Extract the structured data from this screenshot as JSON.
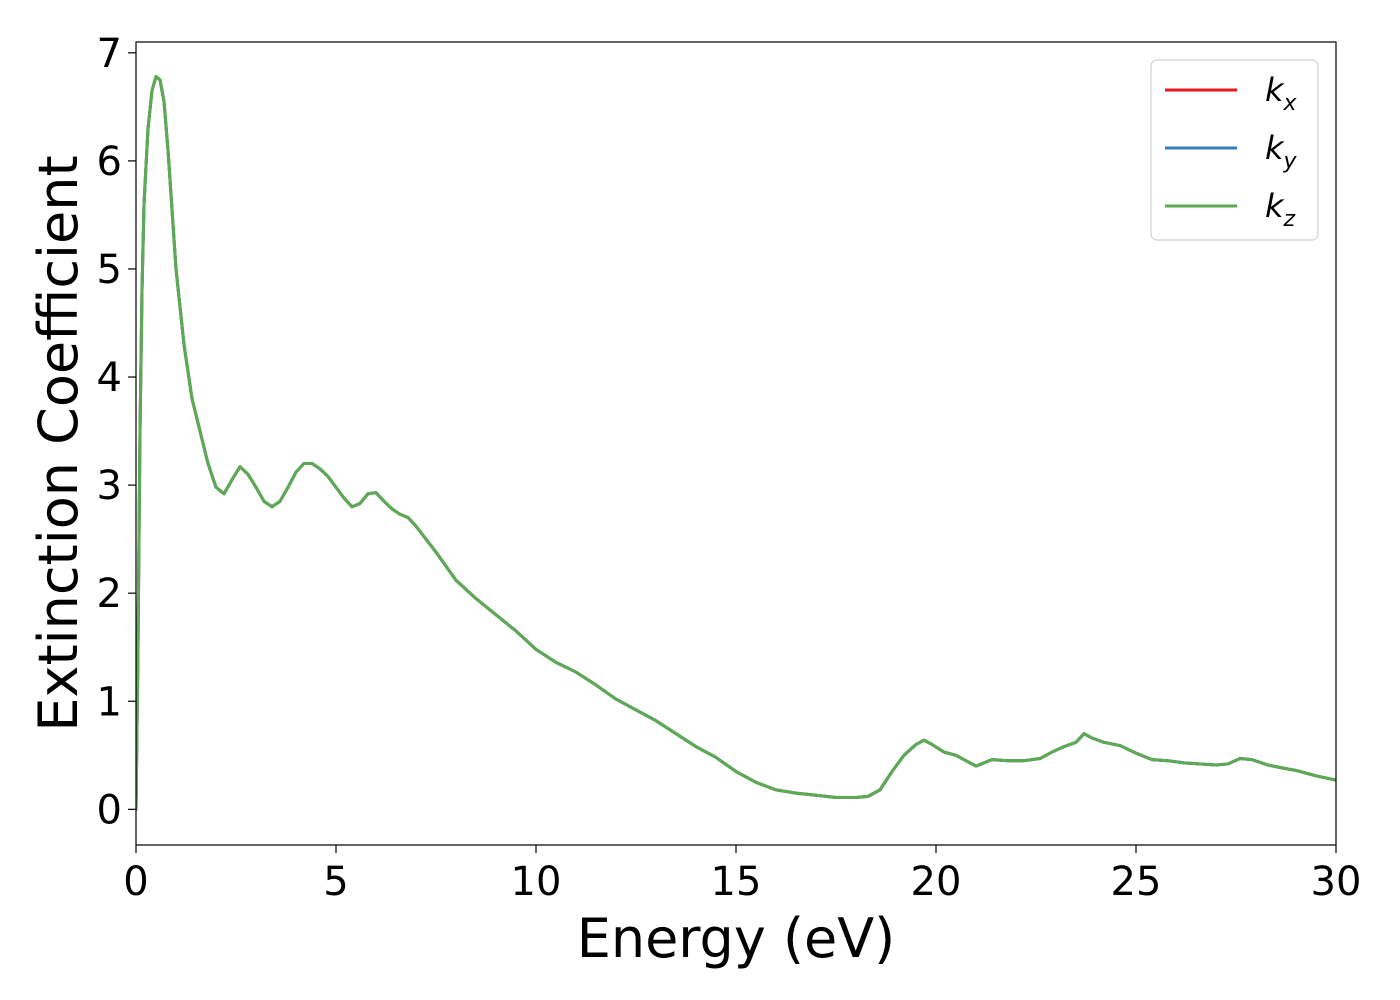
{
  "chart_data": {
    "type": "line",
    "xlabel": "Energy (eV)",
    "ylabel": "Extinction Coefficient",
    "xlim": [
      0,
      30
    ],
    "ylim": [
      -0.33,
      7.1
    ],
    "xticks": [
      "0",
      "5",
      "10",
      "15",
      "20",
      "25",
      "30"
    ],
    "yticks": [
      "0",
      "1",
      "2",
      "3",
      "4",
      "5",
      "6",
      "7"
    ],
    "grid": false,
    "legend_position": "top-right",
    "series": [
      {
        "name": "k",
        "subscript": "x",
        "color": "#e41a1c",
        "x": [
          0,
          0.05,
          0.1,
          0.15,
          0.2,
          0.3,
          0.4,
          0.5,
          0.6,
          0.7,
          0.8,
          0.9,
          1.0,
          1.1,
          1.2,
          1.4,
          1.6,
          1.8,
          2.0,
          2.2,
          2.4,
          2.6,
          2.8,
          3.0,
          3.2,
          3.4,
          3.6,
          3.8,
          4.0,
          4.2,
          4.4,
          4.6,
          4.8,
          5.0,
          5.2,
          5.4,
          5.6,
          5.8,
          6.0,
          6.2,
          6.4,
          6.6,
          6.8,
          7.0,
          7.5,
          8.0,
          8.5,
          9.0,
          9.5,
          10.0,
          10.5,
          11.0,
          11.5,
          12.0,
          12.5,
          13.0,
          13.5,
          14.0,
          14.5,
          15.0,
          15.5,
          16.0,
          16.5,
          17.0,
          17.5,
          18.0,
          18.3,
          18.6,
          18.9,
          19.2,
          19.5,
          19.7,
          19.9,
          20.2,
          20.5,
          20.8,
          21.0,
          21.4,
          21.8,
          22.2,
          22.6,
          22.9,
          23.2,
          23.5,
          23.7,
          23.9,
          24.2,
          24.6,
          25.0,
          25.4,
          25.8,
          26.2,
          26.6,
          27.0,
          27.3,
          27.6,
          27.9,
          28.3,
          28.7,
          29.0,
          29.5,
          30.0
        ],
        "y": [
          0,
          1.5,
          3.5,
          4.8,
          5.6,
          6.3,
          6.65,
          6.78,
          6.75,
          6.55,
          6.1,
          5.55,
          5.0,
          4.65,
          4.3,
          3.8,
          3.5,
          3.2,
          2.98,
          2.92,
          3.05,
          3.17,
          3.1,
          2.98,
          2.85,
          2.8,
          2.85,
          2.98,
          3.12,
          3.2,
          3.2,
          3.15,
          3.08,
          2.98,
          2.88,
          2.8,
          2.83,
          2.92,
          2.93,
          2.85,
          2.78,
          2.73,
          2.7,
          2.62,
          2.38,
          2.12,
          1.95,
          1.8,
          1.65,
          1.48,
          1.36,
          1.27,
          1.15,
          1.02,
          0.92,
          0.82,
          0.7,
          0.58,
          0.48,
          0.35,
          0.25,
          0.18,
          0.15,
          0.13,
          0.11,
          0.11,
          0.12,
          0.18,
          0.35,
          0.5,
          0.6,
          0.64,
          0.6,
          0.53,
          0.5,
          0.44,
          0.4,
          0.46,
          0.45,
          0.45,
          0.47,
          0.53,
          0.58,
          0.62,
          0.7,
          0.66,
          0.62,
          0.59,
          0.52,
          0.46,
          0.45,
          0.43,
          0.42,
          0.41,
          0.42,
          0.47,
          0.46,
          0.41,
          0.38,
          0.36,
          0.31,
          0.27
        ]
      },
      {
        "name": "k",
        "subscript": "y",
        "color": "#377eb8",
        "x": [
          0,
          0.05,
          0.1,
          0.15,
          0.2,
          0.3,
          0.4,
          0.5,
          0.6,
          0.7,
          0.8,
          0.9,
          1.0,
          1.1,
          1.2,
          1.4,
          1.6,
          1.8,
          2.0,
          2.2,
          2.4,
          2.6,
          2.8,
          3.0,
          3.2,
          3.4,
          3.6,
          3.8,
          4.0,
          4.2,
          4.4,
          4.6,
          4.8,
          5.0,
          5.2,
          5.4,
          5.6,
          5.8,
          6.0,
          6.2,
          6.4,
          6.6,
          6.8,
          7.0,
          7.5,
          8.0,
          8.5,
          9.0,
          9.5,
          10.0,
          10.5,
          11.0,
          11.5,
          12.0,
          12.5,
          13.0,
          13.5,
          14.0,
          14.5,
          15.0,
          15.5,
          16.0,
          16.5,
          17.0,
          17.5,
          18.0,
          18.3,
          18.6,
          18.9,
          19.2,
          19.5,
          19.7,
          19.9,
          20.2,
          20.5,
          20.8,
          21.0,
          21.4,
          21.8,
          22.2,
          22.6,
          22.9,
          23.2,
          23.5,
          23.7,
          23.9,
          24.2,
          24.6,
          25.0,
          25.4,
          25.8,
          26.2,
          26.6,
          27.0,
          27.3,
          27.6,
          27.9,
          28.3,
          28.7,
          29.0,
          29.5,
          30.0
        ],
        "y": [
          0,
          1.5,
          3.5,
          4.8,
          5.6,
          6.3,
          6.65,
          6.78,
          6.75,
          6.55,
          6.1,
          5.55,
          5.0,
          4.65,
          4.3,
          3.8,
          3.5,
          3.2,
          2.98,
          2.92,
          3.05,
          3.17,
          3.1,
          2.98,
          2.85,
          2.8,
          2.85,
          2.98,
          3.12,
          3.2,
          3.2,
          3.15,
          3.08,
          2.98,
          2.88,
          2.8,
          2.83,
          2.92,
          2.93,
          2.85,
          2.78,
          2.73,
          2.7,
          2.62,
          2.38,
          2.12,
          1.95,
          1.8,
          1.65,
          1.48,
          1.36,
          1.27,
          1.15,
          1.02,
          0.92,
          0.82,
          0.7,
          0.58,
          0.48,
          0.35,
          0.25,
          0.18,
          0.15,
          0.13,
          0.11,
          0.11,
          0.12,
          0.18,
          0.35,
          0.5,
          0.6,
          0.64,
          0.6,
          0.53,
          0.5,
          0.44,
          0.4,
          0.46,
          0.45,
          0.45,
          0.47,
          0.53,
          0.58,
          0.62,
          0.7,
          0.66,
          0.62,
          0.59,
          0.52,
          0.46,
          0.45,
          0.43,
          0.42,
          0.41,
          0.42,
          0.47,
          0.46,
          0.41,
          0.38,
          0.36,
          0.31,
          0.27
        ]
      },
      {
        "name": "k",
        "subscript": "z",
        "color": "#5aab52",
        "x": [
          0,
          0.05,
          0.1,
          0.15,
          0.2,
          0.3,
          0.4,
          0.5,
          0.6,
          0.7,
          0.8,
          0.9,
          1.0,
          1.1,
          1.2,
          1.4,
          1.6,
          1.8,
          2.0,
          2.2,
          2.4,
          2.6,
          2.8,
          3.0,
          3.2,
          3.4,
          3.6,
          3.8,
          4.0,
          4.2,
          4.4,
          4.6,
          4.8,
          5.0,
          5.2,
          5.4,
          5.6,
          5.8,
          6.0,
          6.2,
          6.4,
          6.6,
          6.8,
          7.0,
          7.5,
          8.0,
          8.5,
          9.0,
          9.5,
          10.0,
          10.5,
          11.0,
          11.5,
          12.0,
          12.5,
          13.0,
          13.5,
          14.0,
          14.5,
          15.0,
          15.5,
          16.0,
          16.5,
          17.0,
          17.5,
          18.0,
          18.3,
          18.6,
          18.9,
          19.2,
          19.5,
          19.7,
          19.9,
          20.2,
          20.5,
          20.8,
          21.0,
          21.4,
          21.8,
          22.2,
          22.6,
          22.9,
          23.2,
          23.5,
          23.7,
          23.9,
          24.2,
          24.6,
          25.0,
          25.4,
          25.8,
          26.2,
          26.6,
          27.0,
          27.3,
          27.6,
          27.9,
          28.3,
          28.7,
          29.0,
          29.5,
          30.0
        ],
        "y": [
          0,
          1.5,
          3.5,
          4.8,
          5.6,
          6.3,
          6.65,
          6.78,
          6.75,
          6.55,
          6.1,
          5.55,
          5.0,
          4.65,
          4.3,
          3.8,
          3.5,
          3.2,
          2.98,
          2.92,
          3.05,
          3.17,
          3.1,
          2.98,
          2.85,
          2.8,
          2.85,
          2.98,
          3.12,
          3.2,
          3.2,
          3.15,
          3.08,
          2.98,
          2.88,
          2.8,
          2.83,
          2.92,
          2.93,
          2.85,
          2.78,
          2.73,
          2.7,
          2.62,
          2.38,
          2.12,
          1.95,
          1.8,
          1.65,
          1.48,
          1.36,
          1.27,
          1.15,
          1.02,
          0.92,
          0.82,
          0.7,
          0.58,
          0.48,
          0.35,
          0.25,
          0.18,
          0.15,
          0.13,
          0.11,
          0.11,
          0.12,
          0.18,
          0.35,
          0.5,
          0.6,
          0.64,
          0.6,
          0.53,
          0.5,
          0.44,
          0.4,
          0.46,
          0.45,
          0.45,
          0.47,
          0.53,
          0.58,
          0.62,
          0.7,
          0.66,
          0.62,
          0.59,
          0.52,
          0.46,
          0.45,
          0.43,
          0.42,
          0.41,
          0.42,
          0.47,
          0.46,
          0.41,
          0.38,
          0.36,
          0.31,
          0.27
        ]
      }
    ]
  }
}
